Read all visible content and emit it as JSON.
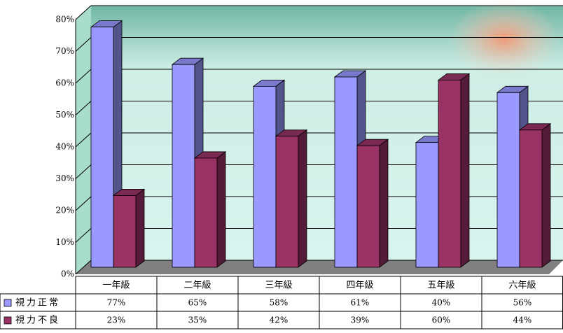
{
  "chart_data": {
    "type": "bar3d",
    "categories": [
      "一年級",
      "二年級",
      "三年級",
      "四年級",
      "五年級",
      "六年級"
    ],
    "series": [
      {
        "name": "視力正常",
        "color": "#9999ff",
        "values": [
          77,
          65,
          58,
          61,
          40,
          56
        ],
        "value_labels": [
          "77%",
          "65%",
          "58%",
          "61%",
          "40%",
          "56%"
        ]
      },
      {
        "name": "視力不良",
        "color": "#993366",
        "values": [
          23,
          35,
          42,
          39,
          60,
          44
        ],
        "value_labels": [
          "23%",
          "35%",
          "42%",
          "39%",
          "60%",
          "44%"
        ]
      }
    ],
    "ylim": [
      0,
      80
    ],
    "yticks": [
      {
        "value": 0,
        "label": "0%"
      },
      {
        "value": 10,
        "label": "10%"
      },
      {
        "value": 20,
        "label": "20%"
      },
      {
        "value": 30,
        "label": "30%"
      },
      {
        "value": 40,
        "label": "40%"
      },
      {
        "value": 50,
        "label": "50%"
      },
      {
        "value": 60,
        "label": "60%"
      },
      {
        "value": 70,
        "label": "70%"
      },
      {
        "value": 80,
        "label": "80%"
      }
    ],
    "grid": true
  }
}
